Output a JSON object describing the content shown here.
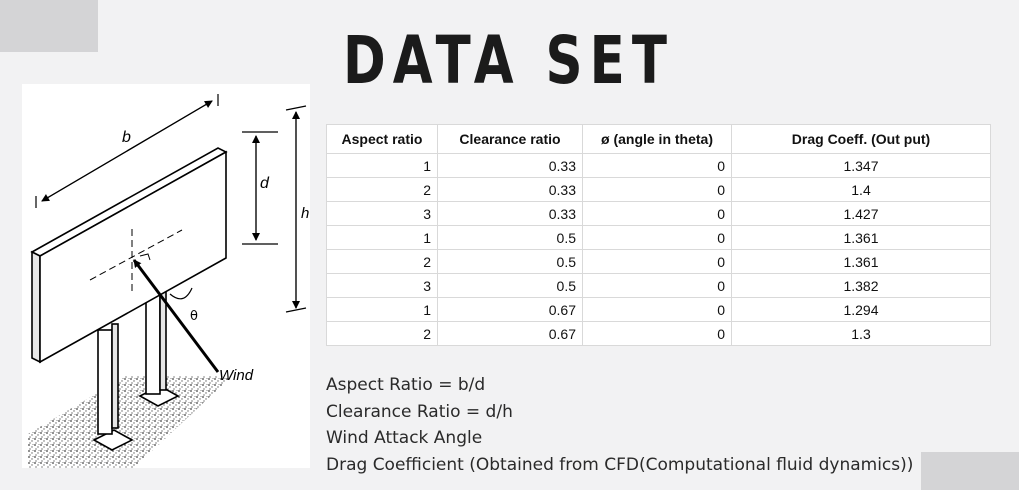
{
  "title": "DATA SET",
  "diagram": {
    "label_b": "b",
    "label_d": "d",
    "label_h": "h",
    "label_theta": "θ",
    "label_wind": "Wind"
  },
  "table": {
    "headers": [
      "Aspect ratio",
      "Clearance ratio",
      "ø (angle in theta)",
      "Drag Coeff. (Out put)"
    ],
    "rows": [
      [
        "1",
        "0.33",
        "0",
        "1.347"
      ],
      [
        "2",
        "0.33",
        "0",
        "1.4"
      ],
      [
        "3",
        "0.33",
        "0",
        "1.427"
      ],
      [
        "1",
        "0.5",
        "0",
        "1.361"
      ],
      [
        "2",
        "0.5",
        "0",
        "1.361"
      ],
      [
        "3",
        "0.5",
        "0",
        "1.382"
      ],
      [
        "1",
        "0.67",
        "0",
        "1.294"
      ],
      [
        "2",
        "0.67",
        "0",
        "1.3"
      ]
    ]
  },
  "notes": [
    "Aspect Ratio = b/d",
    "Clearance Ratio = d/h",
    "Wind Attack Angle",
    "Drag Coefficient (Obtained from CFD(Computational fluid dynamics))"
  ],
  "colors": {
    "background": "#f2f2f3",
    "corner_block": "#d4d4d6",
    "title": "#1b1b1b"
  }
}
